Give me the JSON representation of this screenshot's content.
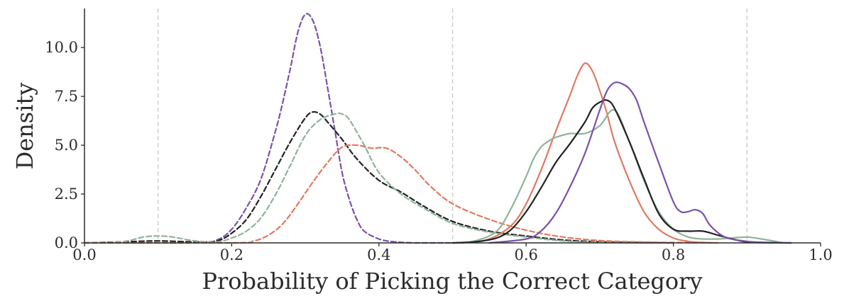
{
  "chart_data": {
    "type": "line",
    "xlabel": "Probability of Picking the Correct Category",
    "ylabel": "Density",
    "xlim": [
      0.0,
      1.0
    ],
    "ylim": [
      0.0,
      12.0
    ],
    "x_ticks": [
      "0.0",
      "0.2",
      "0.4",
      "0.6",
      "0.8",
      "1.0"
    ],
    "y_ticks": [
      "0.0",
      "2.5",
      "5.0",
      "7.5",
      "10.0"
    ],
    "reference_lines_x": [
      0.1,
      0.5,
      0.9
    ],
    "grid": false,
    "legend": "none",
    "series": [
      {
        "color": "#7b52ab",
        "style": "dashed",
        "x": [
          0.0,
          0.15,
          0.18,
          0.2,
          0.22,
          0.24,
          0.26,
          0.27,
          0.28,
          0.29,
          0.3,
          0.31,
          0.32,
          0.33,
          0.34,
          0.35,
          0.36,
          0.37,
          0.38,
          0.4,
          0.42,
          0.45,
          0.5
        ],
        "y": [
          0.0,
          0.0,
          0.15,
          0.7,
          1.8,
          3.3,
          5.8,
          7.3,
          9.0,
          10.8,
          11.7,
          11.4,
          10.1,
          8.0,
          5.8,
          3.6,
          2.2,
          1.2,
          0.6,
          0.2,
          0.06,
          0.0,
          0.0
        ]
      },
      {
        "color": "#222222",
        "style": "dashed",
        "x": [
          0.0,
          0.05,
          0.1,
          0.15,
          0.18,
          0.2,
          0.22,
          0.24,
          0.26,
          0.28,
          0.3,
          0.31,
          0.32,
          0.33,
          0.35,
          0.37,
          0.4,
          0.43,
          0.46,
          0.5,
          0.55,
          0.6,
          0.65,
          0.7,
          0.75,
          0.8
        ],
        "y": [
          0.0,
          0.05,
          0.1,
          0.05,
          0.1,
          0.5,
          1.2,
          2.4,
          3.8,
          5.2,
          6.4,
          6.7,
          6.6,
          6.2,
          5.3,
          4.3,
          3.2,
          2.6,
          1.9,
          1.1,
          0.6,
          0.35,
          0.15,
          0.05,
          0.02,
          0.0
        ]
      },
      {
        "color": "#8fb39a",
        "style": "dashed",
        "x": [
          0.0,
          0.05,
          0.08,
          0.1,
          0.12,
          0.15,
          0.18,
          0.2,
          0.22,
          0.24,
          0.26,
          0.28,
          0.3,
          0.32,
          0.34,
          0.35,
          0.36,
          0.38,
          0.4,
          0.43,
          0.46,
          0.5,
          0.55,
          0.6,
          0.65,
          0.7,
          0.75,
          0.8
        ],
        "y": [
          0.0,
          0.05,
          0.3,
          0.35,
          0.3,
          0.1,
          0.05,
          0.25,
          0.6,
          1.3,
          2.5,
          4.0,
          5.5,
          6.3,
          6.6,
          6.6,
          6.3,
          5.0,
          3.6,
          2.5,
          1.8,
          1.0,
          0.55,
          0.3,
          0.1,
          0.03,
          0.0,
          0.0
        ]
      },
      {
        "color": "#e07a5f",
        "style": "dashed",
        "x": [
          0.0,
          0.2,
          0.23,
          0.25,
          0.27,
          0.29,
          0.31,
          0.33,
          0.35,
          0.37,
          0.39,
          0.41,
          0.43,
          0.45,
          0.47,
          0.5,
          0.55,
          0.6,
          0.65,
          0.7,
          0.75,
          0.8,
          0.85
        ],
        "y": [
          0.0,
          0.0,
          0.1,
          0.4,
          1.0,
          2.0,
          3.1,
          4.1,
          4.9,
          5.0,
          4.85,
          4.85,
          4.4,
          3.7,
          2.9,
          2.0,
          1.2,
          0.65,
          0.3,
          0.12,
          0.05,
          0.02,
          0.0
        ]
      },
      {
        "color": "#e07a5f",
        "style": "solid",
        "x": [
          0.5,
          0.52,
          0.55,
          0.58,
          0.6,
          0.62,
          0.64,
          0.66,
          0.67,
          0.68,
          0.69,
          0.7,
          0.71,
          0.72,
          0.74,
          0.76,
          0.78,
          0.8,
          0.82,
          0.84,
          0.86
        ],
        "y": [
          0.0,
          0.03,
          0.2,
          0.9,
          2.0,
          3.7,
          5.7,
          7.6,
          8.6,
          9.2,
          8.8,
          7.8,
          6.6,
          5.2,
          3.2,
          1.6,
          0.7,
          0.25,
          0.08,
          0.02,
          0.0
        ]
      },
      {
        "color": "#8fb39a",
        "style": "solid",
        "x": [
          0.5,
          0.53,
          0.56,
          0.58,
          0.6,
          0.61,
          0.62,
          0.63,
          0.64,
          0.66,
          0.68,
          0.7,
          0.72,
          0.74,
          0.76,
          0.78,
          0.8,
          0.82,
          0.84,
          0.86,
          0.88,
          0.9,
          0.92,
          0.95
        ],
        "y": [
          0.0,
          0.1,
          0.6,
          1.8,
          3.4,
          4.3,
          4.9,
          5.2,
          5.4,
          5.6,
          5.6,
          6.0,
          6.8,
          5.2,
          3.2,
          1.6,
          0.7,
          0.3,
          0.2,
          0.2,
          0.25,
          0.3,
          0.2,
          0.0
        ]
      },
      {
        "color": "#222222",
        "style": "solid",
        "x": [
          0.5,
          0.53,
          0.56,
          0.58,
          0.6,
          0.62,
          0.64,
          0.66,
          0.68,
          0.69,
          0.7,
          0.71,
          0.72,
          0.74,
          0.76,
          0.78,
          0.8,
          0.82,
          0.84,
          0.86,
          0.88,
          0.9,
          0.93,
          0.96
        ],
        "y": [
          0.0,
          0.05,
          0.25,
          0.7,
          1.6,
          2.8,
          4.1,
          5.1,
          6.2,
          6.9,
          7.2,
          7.3,
          6.9,
          5.2,
          3.3,
          1.5,
          0.7,
          0.6,
          0.6,
          0.4,
          0.2,
          0.05,
          0.01,
          0.0
        ]
      },
      {
        "color": "#7b52ab",
        "style": "solid",
        "x": [
          0.55,
          0.6,
          0.62,
          0.64,
          0.66,
          0.68,
          0.7,
          0.71,
          0.72,
          0.73,
          0.74,
          0.75,
          0.76,
          0.78,
          0.8,
          0.81,
          0.82,
          0.83,
          0.84,
          0.85,
          0.87,
          0.9,
          0.93,
          0.96
        ],
        "y": [
          0.0,
          0.2,
          0.6,
          1.5,
          2.9,
          4.6,
          6.8,
          7.8,
          8.2,
          8.15,
          7.9,
          7.3,
          6.2,
          4.1,
          2.1,
          1.6,
          1.6,
          1.7,
          1.5,
          0.9,
          0.3,
          0.08,
          0.02,
          0.0
        ]
      }
    ]
  }
}
